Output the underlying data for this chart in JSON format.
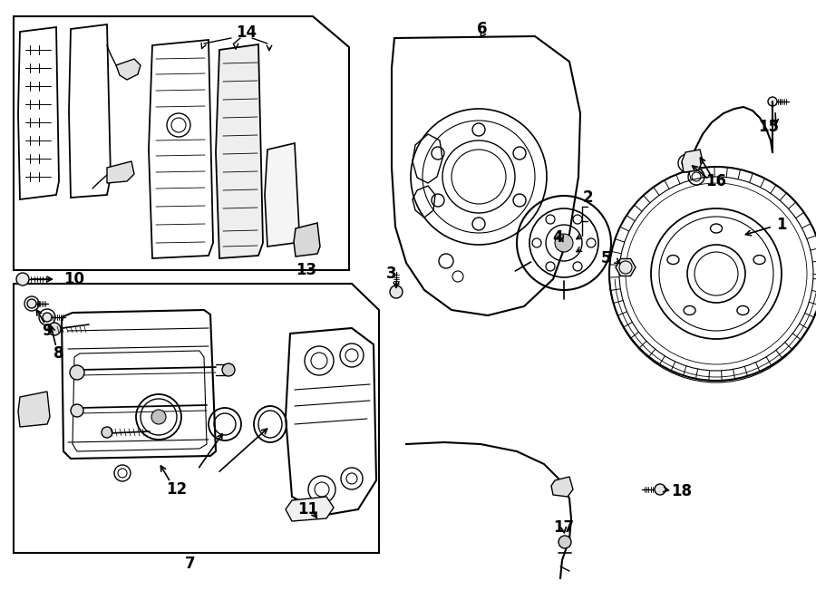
{
  "bg_color": "#ffffff",
  "line_color": "#000000",
  "fig_width": 9.0,
  "fig_height": 6.62,
  "dpi": 100
}
